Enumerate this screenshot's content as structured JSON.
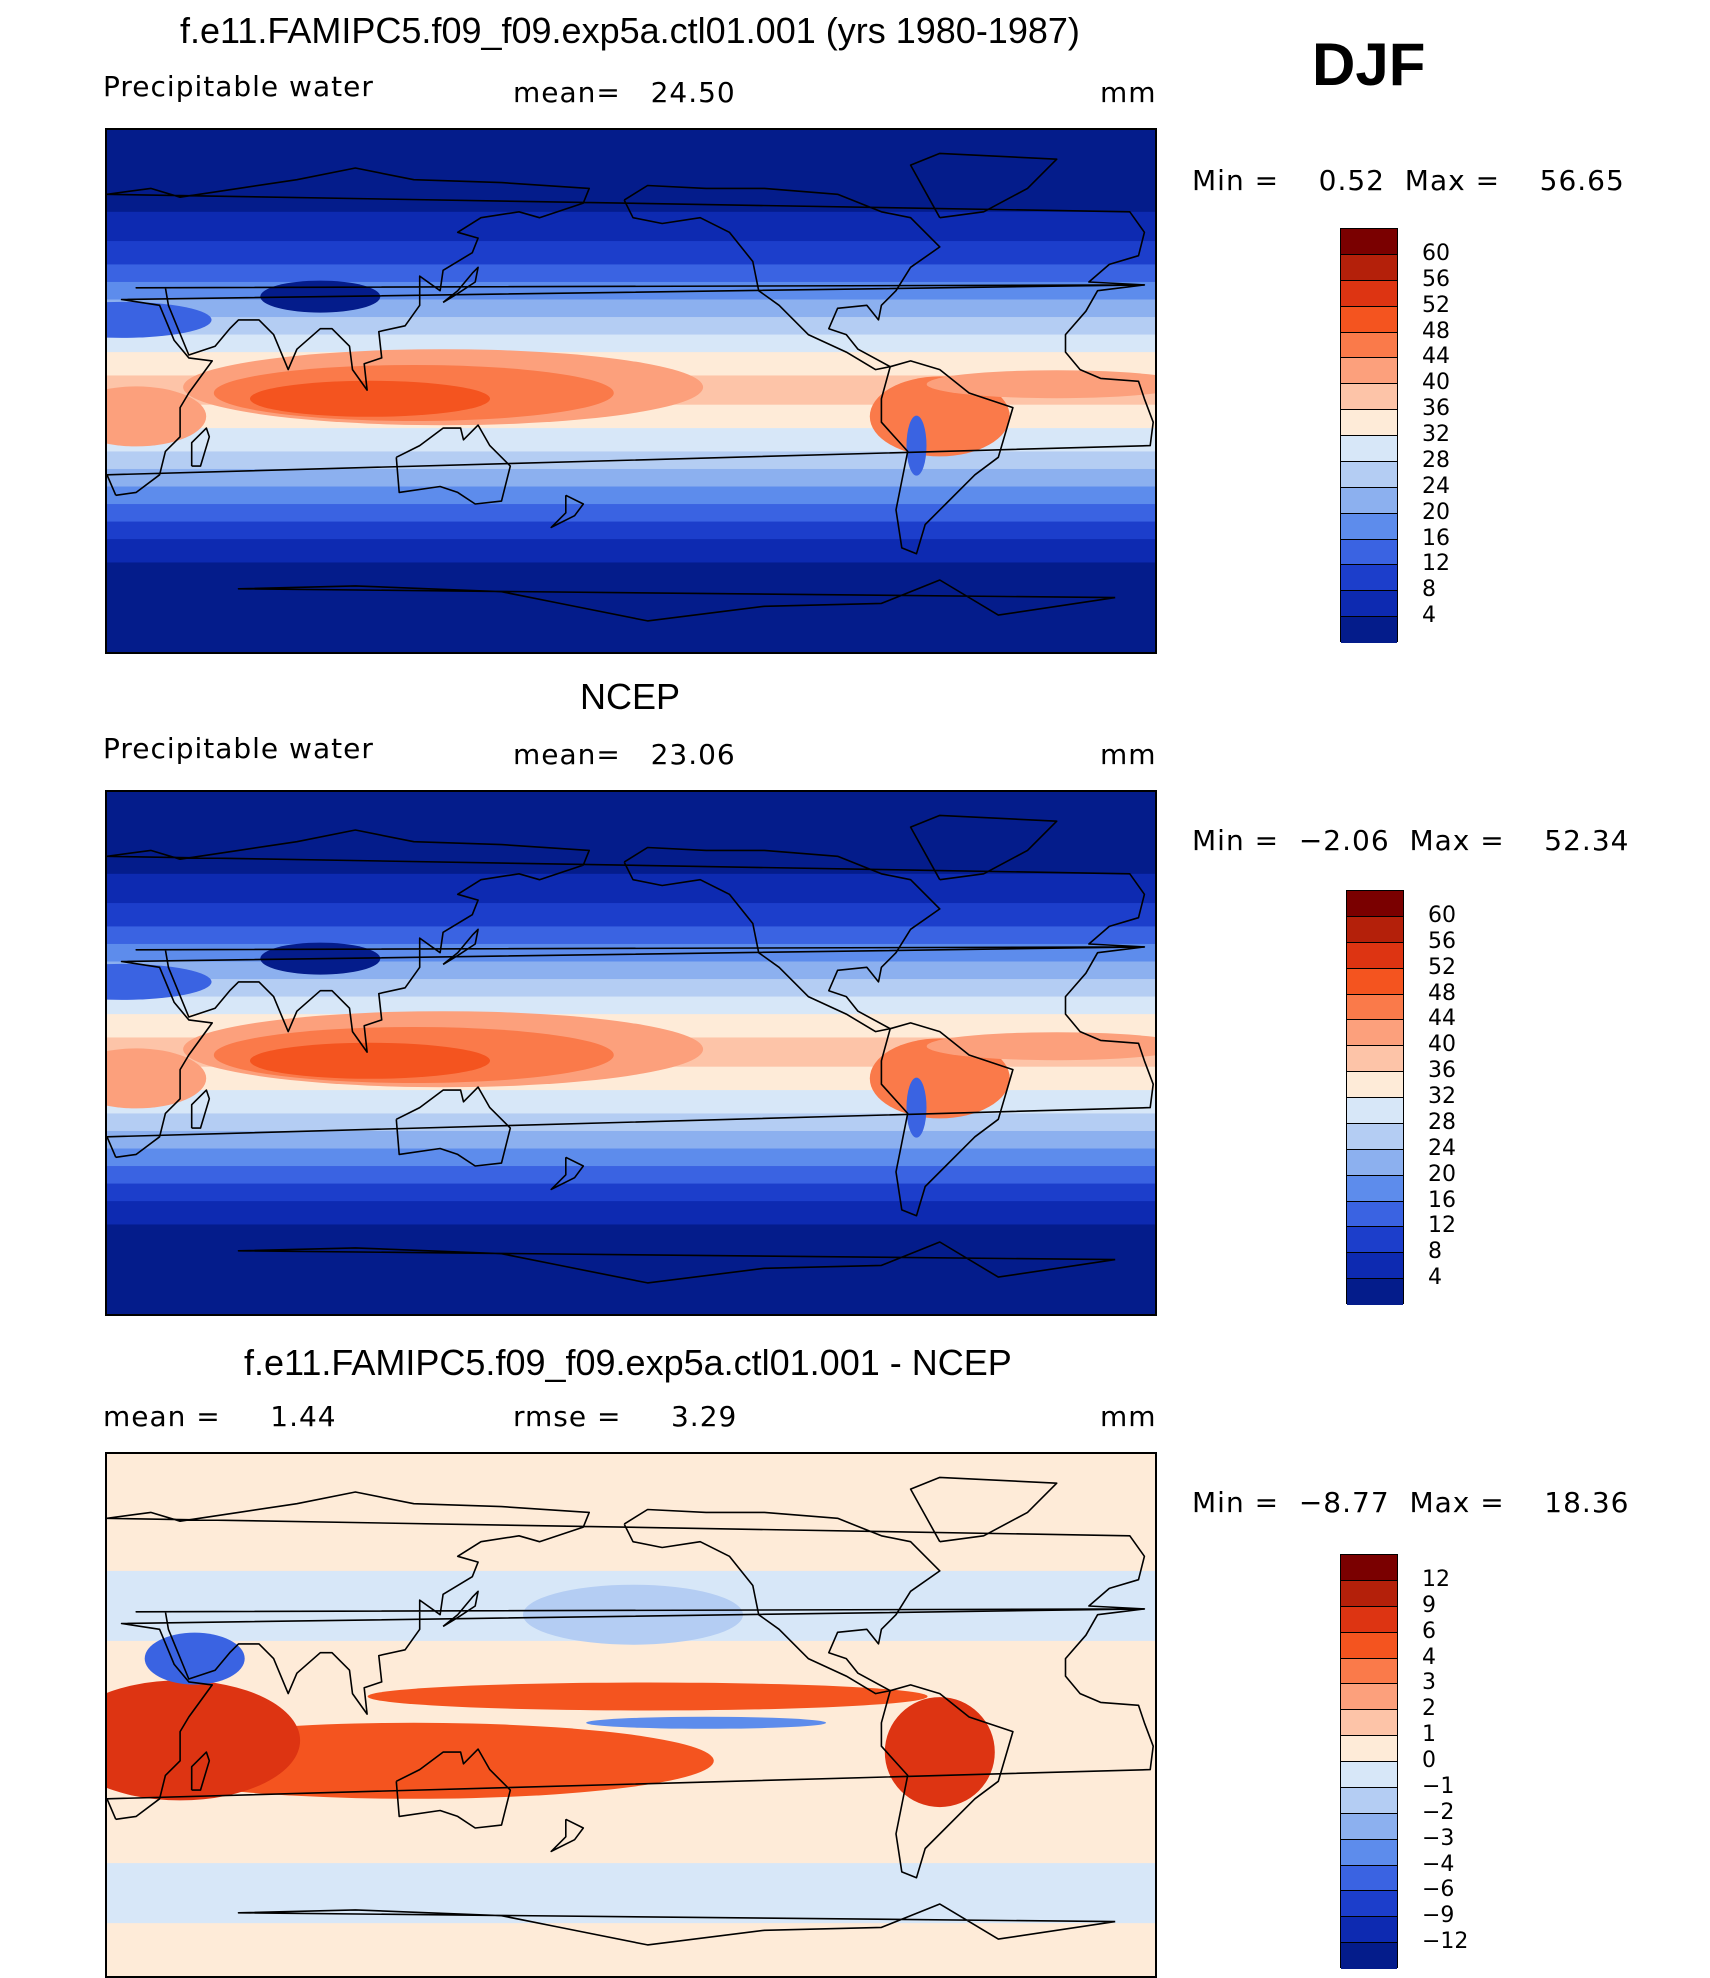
{
  "season_label": "DJF",
  "units": "mm",
  "panels": [
    {
      "title": "f.e11.FAMIPC5.f09_f09.exp5a.ctl01.001 (yrs 1980-1987)",
      "variable": "Precipitable water",
      "stat_text": "mean=   24.50",
      "units": "mm",
      "minmax": "Min =    0.52  Max =    56.65",
      "type": "field",
      "colorbar": {
        "labels": [
          "60",
          "56",
          "52",
          "48",
          "44",
          "40",
          "36",
          "32",
          "28",
          "24",
          "20",
          "16",
          "12",
          "8",
          "4"
        ],
        "colors": [
          "#7a0000",
          "#b4200a",
          "#dd3412",
          "#f4541f",
          "#fa7a4a",
          "#fca07c",
          "#fdc4a8",
          "#feebd8",
          "#d7e7f8",
          "#b4cdf3",
          "#8cb0ef",
          "#5d8cec",
          "#3a63e2",
          "#1c3ecb",
          "#0d2ab1",
          "#041c8b"
        ]
      }
    },
    {
      "title": "NCEP",
      "variable": "Precipitable water",
      "stat_text": "mean=   23.06",
      "units": "mm",
      "minmax": "Min =  −2.06  Max =    52.34",
      "type": "field",
      "colorbar": {
        "labels": [
          "60",
          "56",
          "52",
          "48",
          "44",
          "40",
          "36",
          "32",
          "28",
          "24",
          "20",
          "16",
          "12",
          "8",
          "4"
        ],
        "colors": [
          "#7a0000",
          "#b4200a",
          "#dd3412",
          "#f4541f",
          "#fa7a4a",
          "#fca07c",
          "#fdc4a8",
          "#feebd8",
          "#d7e7f8",
          "#b4cdf3",
          "#8cb0ef",
          "#5d8cec",
          "#3a63e2",
          "#1c3ecb",
          "#0d2ab1",
          "#041c8b"
        ]
      }
    },
    {
      "title": "f.e11.FAMIPC5.f09_f09.exp5a.ctl01.001 - NCEP",
      "mean_text": "mean =     1.44",
      "rmse_text": "rmse =     3.29",
      "units": "mm",
      "minmax": "Min =  −8.77  Max =    18.36",
      "type": "diff",
      "colorbar": {
        "labels": [
          "12",
          "9",
          "6",
          "4",
          "3",
          "2",
          "1",
          "0",
          "−1",
          "−2",
          "−3",
          "−4",
          "−6",
          "−9",
          "−12"
        ],
        "colors": [
          "#7a0000",
          "#b4200a",
          "#dd3412",
          "#f4541f",
          "#fa7a4a",
          "#fca07c",
          "#fdc4a8",
          "#feebd8",
          "#d7e7f8",
          "#b4cdf3",
          "#8cb0ef",
          "#5d8cec",
          "#3a63e2",
          "#1c3ecb",
          "#0d2ab1",
          "#041c8b"
        ]
      }
    }
  ]
}
